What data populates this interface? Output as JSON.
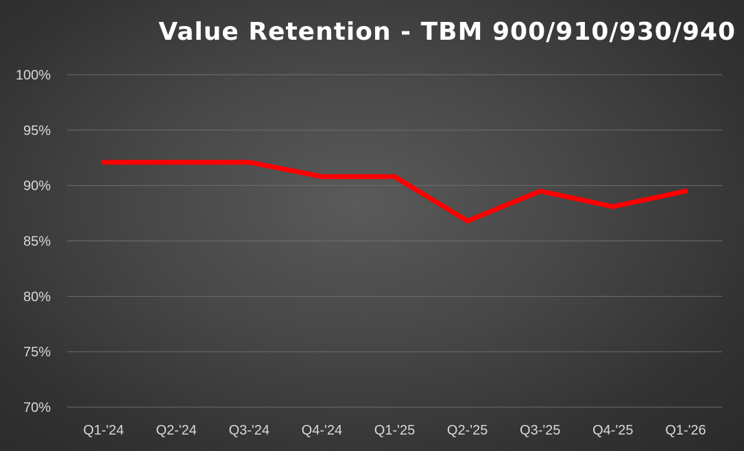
{
  "chart_data": {
    "type": "line",
    "title": "Value Retention - TBM 900/910/930/940",
    "xlabel": "",
    "ylabel": "",
    "categories": [
      "Q1-'24",
      "Q2-'24",
      "Q3-'24",
      "Q4-'24",
      "Q1-'25",
      "Q2-'25",
      "Q3-'25",
      "Q4-'25",
      "Q1-'26"
    ],
    "series": [
      {
        "values": [
          92.1,
          92.1,
          92.1,
          90.8,
          90.8,
          86.8,
          89.5,
          88.1,
          89.5
        ]
      }
    ],
    "ylim": [
      70,
      100
    ],
    "yticks": [
      70,
      75,
      80,
      85,
      90,
      95,
      100
    ],
    "ytick_labels": [
      "70%",
      "75%",
      "80%",
      "85%",
      "90%",
      "95%",
      "100%"
    ],
    "grid": "horizontal",
    "legend": "none",
    "colors": {
      "series": "#ff0000",
      "grid": "#6e6e6e",
      "text": "#d9d9d9",
      "title": "#ffffff"
    }
  }
}
